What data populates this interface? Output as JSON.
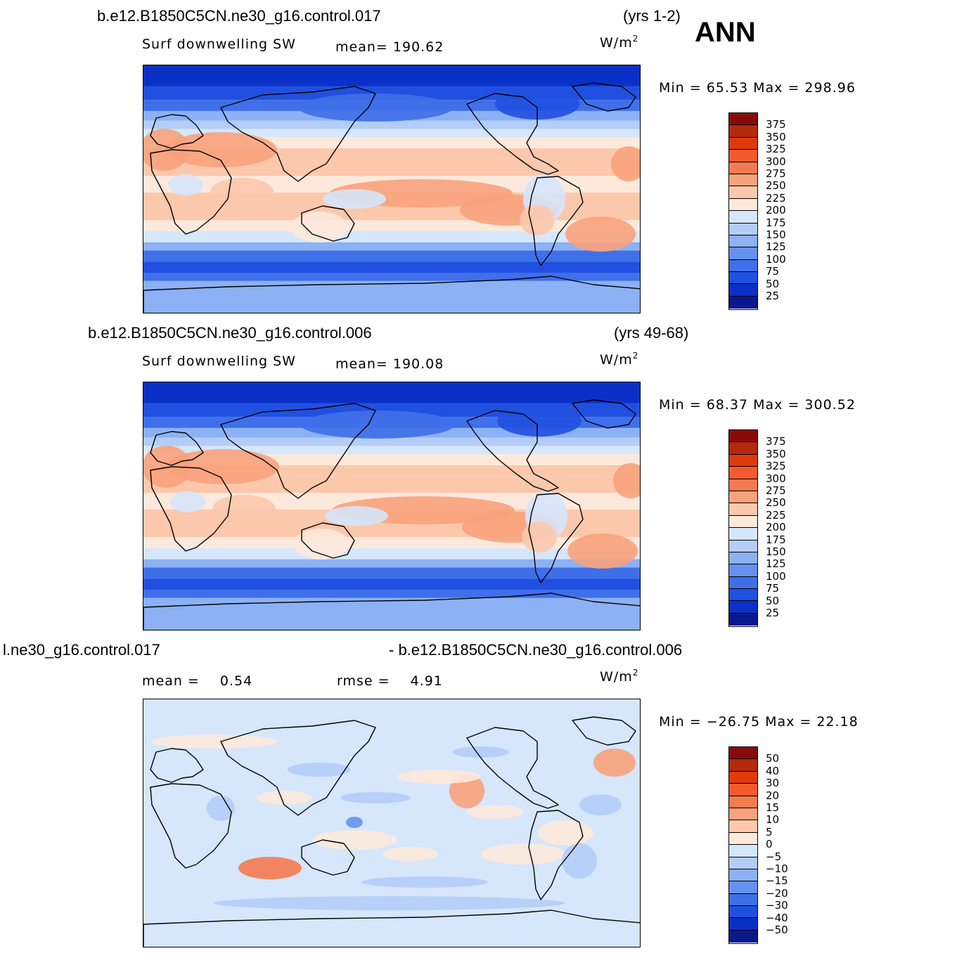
{
  "season": "ANN",
  "panels": [
    {
      "case": "b.e12.B1850C5CN.ne30_g16.control.017",
      "years": "(yrs 1-2)",
      "variable": "Surf  downwelling  SW",
      "stat1_label": "mean=",
      "stat1_value": "190.62",
      "stat2_label": "",
      "stat2_value": "",
      "units": "W/m",
      "units_sup": "2",
      "minmax": "Min  =    65.53  Max  =  298.96",
      "levels": [
        "375",
        "350",
        "325",
        "300",
        "275",
        "250",
        "225",
        "200",
        "175",
        "150",
        "125",
        "100",
        "75",
        "50",
        "25"
      ],
      "colors": [
        "#8a0a0a",
        "#b32a0c",
        "#e13a0a",
        "#f55a2e",
        "#f57a50",
        "#f8a27c",
        "#fcc8ac",
        "#fde9dc",
        "#d6e6fb",
        "#b3cdf8",
        "#8cb1f4",
        "#6691ef",
        "#3f6fe9",
        "#2050e0",
        "#0b30c7",
        "#0a1890"
      ],
      "field": "sw"
    },
    {
      "case": "b.e12.B1850C5CN.ne30_g16.control.006",
      "years": "(yrs 49-68)",
      "variable": "Surf  downwelling  SW",
      "stat1_label": "mean=",
      "stat1_value": "190.08",
      "stat2_label": "",
      "stat2_value": "",
      "units": "W/m",
      "units_sup": "2",
      "minmax": "Min  =    68.37  Max  =  300.52",
      "levels": [
        "375",
        "350",
        "325",
        "300",
        "275",
        "250",
        "225",
        "200",
        "175",
        "150",
        "125",
        "100",
        "75",
        "50",
        "25"
      ],
      "colors": [
        "#8a0a0a",
        "#b32a0c",
        "#e13a0a",
        "#f55a2e",
        "#f57a50",
        "#f8a27c",
        "#fcc8ac",
        "#fde9dc",
        "#d6e6fb",
        "#b3cdf8",
        "#8cb1f4",
        "#6691ef",
        "#3f6fe9",
        "#2050e0",
        "#0b30c7",
        "#0a1890"
      ],
      "field": "sw"
    },
    {
      "case": "l.ne30_g16.control.017",
      "years": "- b.e12.B1850C5CN.ne30_g16.control.006",
      "variable": "",
      "stat1_label": "mean  =",
      "stat1_value": "0.54",
      "stat2_label": "rmse  =",
      "stat2_value": "4.91",
      "units": "W/m",
      "units_sup": "2",
      "minmax": "Min  = −26.75  Max  =    22.18",
      "levels": [
        "50",
        "40",
        "30",
        "20",
        "15",
        "10",
        "5",
        "0",
        "−5",
        "−10",
        "−15",
        "−20",
        "−30",
        "−40",
        "−50"
      ],
      "colors": [
        "#8a0a0a",
        "#b32a0c",
        "#e13a0a",
        "#f55a2e",
        "#f57a50",
        "#f8a27c",
        "#fcc8ac",
        "#fde9dc",
        "#d6e6fb",
        "#b3cdf8",
        "#8cb1f4",
        "#6691ef",
        "#3f6fe9",
        "#2050e0",
        "#0b30c7",
        "#0a1890"
      ],
      "field": "diff"
    }
  ]
}
